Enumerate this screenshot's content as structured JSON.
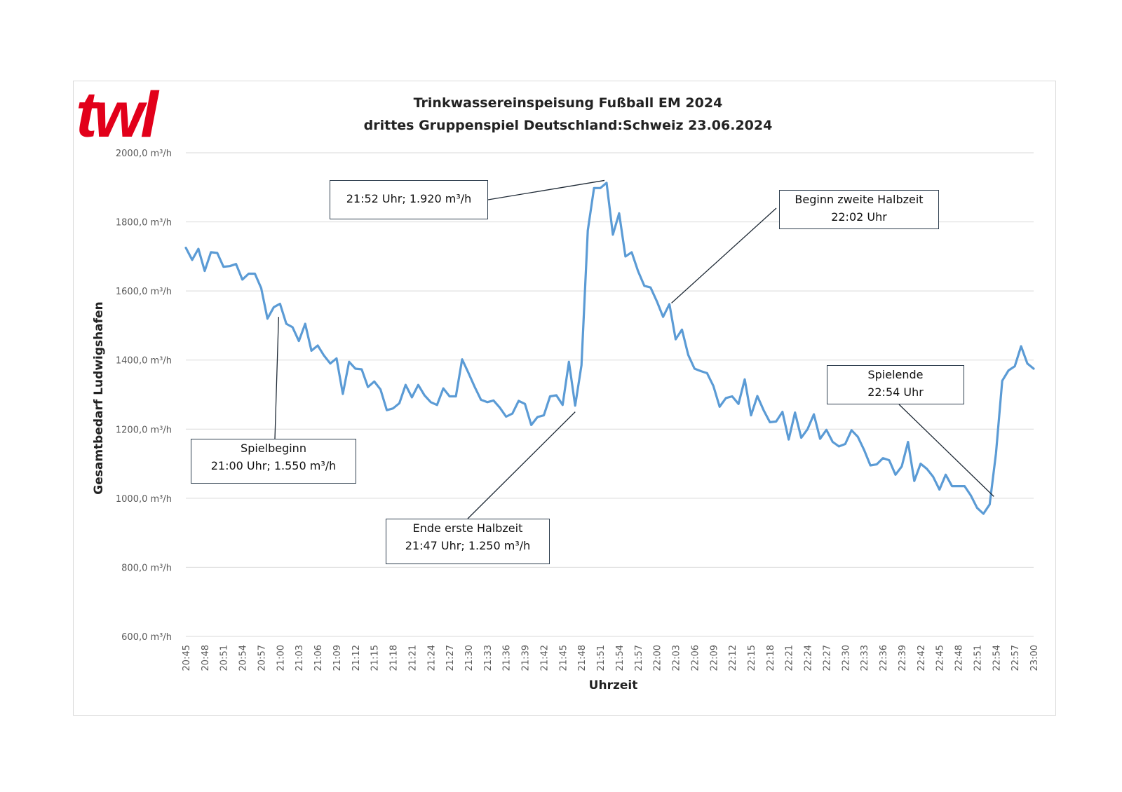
{
  "logo": {
    "text": "twl"
  },
  "chart_data": {
    "type": "line",
    "title": "Trinkwassereinspeisung Fußball EM 2024",
    "subtitle": "drittes Gruppenspiel Deutschland:Schweiz 23.06.2024",
    "xlabel": "Uhrzeit",
    "ylabel": "Gesamtbedarf Ludwigshafen",
    "ylim": [
      600,
      2000
    ],
    "yticks": [
      600,
      800,
      1000,
      1200,
      1400,
      1600,
      1800,
      2000
    ],
    "ytick_labels": [
      "600,0 m³/h",
      "800,0 m³/h",
      "1000,0 m³/h",
      "1200,0 m³/h",
      "1400,0 m³/h",
      "1600,0 m³/h",
      "1800,0 m³/h",
      "2000,0 m³/h"
    ],
    "grid": true,
    "line_color": "#5b9bd5",
    "x_tick_labels": [
      "20:45",
      "20:48",
      "20:51",
      "20:54",
      "20:57",
      "21:00",
      "21:03",
      "21:06",
      "21:09",
      "21:12",
      "21:15",
      "21:18",
      "21:21",
      "21:24",
      "21:27",
      "21:30",
      "21:33",
      "21:36",
      "21:39",
      "21:42",
      "21:45",
      "21:48",
      "21:51",
      "21:54",
      "21:57",
      "22:00",
      "22:03",
      "22:06",
      "22:09",
      "22:12",
      "22:15",
      "22:18",
      "22:21",
      "22:24",
      "22:27",
      "22:30",
      "22:33",
      "22:36",
      "22:39",
      "22:42",
      "22:45",
      "22:48",
      "22:51",
      "22:54",
      "22:57",
      "23:00"
    ],
    "x_start_minutes": 1245,
    "x_step_minutes": 1,
    "series": [
      {
        "name": "Gesamtbedarf Ludwigshafen",
        "values": [
          1725,
          1690,
          1722,
          1658,
          1712,
          1710,
          1670,
          1672,
          1678,
          1633,
          1650,
          1650,
          1608,
          1520,
          1553,
          1563,
          1505,
          1495,
          1455,
          1505,
          1427,
          1442,
          1413,
          1390,
          1405,
          1302,
          1395,
          1375,
          1373,
          1322,
          1338,
          1315,
          1255,
          1260,
          1275,
          1328,
          1292,
          1328,
          1298,
          1278,
          1270,
          1318,
          1295,
          1295,
          1402,
          1363,
          1322,
          1285,
          1278,
          1283,
          1262,
          1236,
          1245,
          1282,
          1273,
          1212,
          1235,
          1240,
          1295,
          1298,
          1270,
          1395,
          1268,
          1385,
          1775,
          1898,
          1898,
          1913,
          1763,
          1825,
          1700,
          1712,
          1658,
          1615,
          1610,
          1570,
          1525,
          1562,
          1460,
          1488,
          1415,
          1375,
          1368,
          1362,
          1325,
          1265,
          1290,
          1295,
          1273,
          1344,
          1240,
          1296,
          1255,
          1220,
          1222,
          1250,
          1170,
          1248,
          1175,
          1200,
          1243,
          1172,
          1198,
          1163,
          1150,
          1157,
          1197,
          1178,
          1140,
          1095,
          1098,
          1116,
          1110,
          1068,
          1092,
          1163,
          1050,
          1100,
          1085,
          1062,
          1025,
          1068,
          1035,
          1035,
          1035,
          1008,
          972,
          955,
          982,
          1130,
          1340,
          1370,
          1382,
          1440,
          1390,
          1375
        ]
      }
    ],
    "annotations": [
      {
        "lines": [
          "Spielbeginn",
          "21:00 Uhr; 1.550 m³/h"
        ],
        "time": "21:00",
        "value": 1550
      },
      {
        "lines": [
          "21:52 Uhr; 1.920 m³/h"
        ],
        "time": "21:52",
        "value": 1920
      },
      {
        "lines": [
          "Ende erste Halbzeit",
          "21:47 Uhr; 1.250 m³/h"
        ],
        "time": "21:47",
        "value": 1250
      },
      {
        "lines": [
          "Beginn zweite Halbzeit",
          "22:02 Uhr"
        ],
        "time": "22:02",
        "value": 1560
      },
      {
        "lines": [
          "Spielende",
          "22:54 Uhr"
        ],
        "time": "22:54",
        "value": 1010
      }
    ]
  }
}
